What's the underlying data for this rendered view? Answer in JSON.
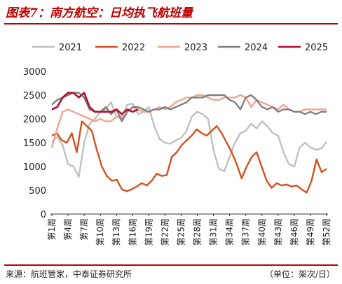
{
  "header": {
    "title": "图表7：南方航空：日均执飞航班量"
  },
  "footer": {
    "source": "来源：航班管家，中泰证券研究所",
    "unit": "（单位：架次/日）"
  },
  "chart_data": {
    "type": "line",
    "ylim": [
      0,
      3000
    ],
    "yticks": [
      0,
      500,
      1000,
      1500,
      2000,
      2500,
      3000
    ],
    "xlabels": [
      "第1周",
      "第4周",
      "第7周",
      "第10周",
      "第13周",
      "第16周",
      "第19周",
      "第22周",
      "第25周",
      "第28周",
      "第31周",
      "第34周",
      "第37周",
      "第40周",
      "第43周",
      "第46周",
      "第49周",
      "第52周"
    ],
    "legend": [
      "2021",
      "2022",
      "2023",
      "2024",
      "2025"
    ],
    "series": [
      {
        "name": "2021",
        "color": "#c0c0c0",
        "values": [
          1520,
          1620,
          1450,
          1050,
          1000,
          780,
          1500,
          1900,
          2000,
          2150,
          2200,
          2350,
          2050,
          2050,
          2300,
          2320,
          2100,
          2150,
          2250,
          1850,
          1580,
          1500,
          1480,
          1550,
          1600,
          1750,
          2050,
          2150,
          2100,
          2000,
          1350,
          950,
          900,
          1200,
          1500,
          1700,
          1750,
          1900,
          1800,
          1950,
          1850,
          1700,
          1650,
          1300,
          1050,
          1000,
          1400,
          1500,
          1400,
          1350,
          1380,
          1520
        ]
      },
      {
        "name": "2022",
        "color": "#d4501e",
        "values": [
          1650,
          1700,
          1550,
          1500,
          1700,
          1300,
          1950,
          1850,
          1750,
          1350,
          1000,
          800,
          700,
          720,
          520,
          480,
          520,
          580,
          650,
          600,
          700,
          850,
          800,
          820,
          1200,
          1300,
          1450,
          1550,
          1650,
          1780,
          1700,
          1650,
          1750,
          1850,
          1700,
          1500,
          1300,
          1050,
          750,
          1000,
          1200,
          1300,
          1000,
          700,
          550,
          650,
          600,
          620,
          580,
          600,
          520,
          450,
          700,
          1150,
          880,
          950
        ]
      },
      {
        "name": "2023",
        "color": "#f4a290",
        "values": [
          1400,
          1800,
          2150,
          2200,
          2150,
          2100,
          2050,
          2000,
          1950,
          2000,
          1950,
          1950,
          2050,
          2000,
          2150,
          2250,
          2200,
          2150,
          2150,
          2200,
          2250,
          2200,
          2250,
          2350,
          2400,
          2450,
          2450,
          2500,
          2500,
          2450,
          2400,
          2400,
          2450,
          2450,
          2450,
          2500,
          2450,
          2250,
          2400,
          2350,
          2300,
          2250,
          2200,
          2300,
          2200,
          2150,
          2150,
          2200,
          2200,
          2200,
          2200,
          2200
        ]
      },
      {
        "name": "2024",
        "color": "#808080",
        "values": [
          2300,
          2400,
          2450,
          2500,
          2550,
          2550,
          2450,
          2200,
          2150,
          2150,
          2250,
          2100,
          2200,
          1950,
          2150,
          2250,
          2250,
          2200,
          2150,
          2200,
          2200,
          2250,
          2200,
          2250,
          2300,
          2350,
          2450,
          2450,
          2450,
          2500,
          2500,
          2500,
          2500,
          2400,
          2350,
          2200,
          2450,
          2500,
          2400,
          2250,
          2200,
          2250,
          2150,
          2200,
          2200,
          2150,
          2150,
          2100,
          2150,
          2100,
          2150,
          2150
        ]
      },
      {
        "name": "2025",
        "color": "#b01030",
        "values": [
          2200,
          2250,
          2450,
          2550,
          2550,
          2450,
          2550,
          2250,
          2150,
          2150,
          2150,
          2150,
          2200,
          2100,
          2200,
          2150,
          2200
        ]
      }
    ]
  }
}
